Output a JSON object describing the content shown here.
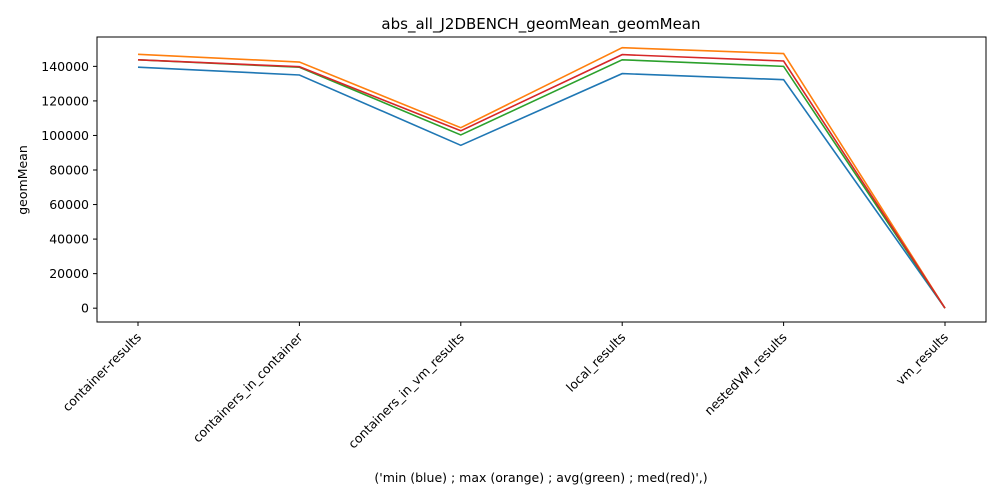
{
  "chart_data": {
    "type": "line",
    "title": "abs_all_J2DBENCH_geomMean_geomMean",
    "xlabel": "('min (blue) ; max (orange) ; avg(green) ; med(red)',)",
    "ylabel": "geomMean",
    "categories": [
      "container-results",
      "containers_in_container",
      "containers_in_vm_results",
      "local_results",
      "nestedVM_results",
      "vm_results"
    ],
    "yticks": [
      "0",
      "20000",
      "40000",
      "60000",
      "80000",
      "100000",
      "120000",
      "140000"
    ],
    "ytick_values": [
      0,
      20000,
      40000,
      60000,
      80000,
      100000,
      120000,
      140000
    ],
    "ylim": [
      -8000,
      157000
    ],
    "grid": false,
    "series": [
      {
        "color": "#1f77b4",
        "values": [
          139500,
          135000,
          94300,
          135800,
          132300,
          0
        ]
      },
      {
        "color": "#ff7f0e",
        "values": [
          147000,
          142500,
          104500,
          150800,
          147400,
          0
        ]
      },
      {
        "color": "#2ca02c",
        "values": [
          143800,
          139500,
          100300,
          143800,
          140000,
          0
        ]
      },
      {
        "color": "#d62728",
        "values": [
          143800,
          139800,
          102700,
          146800,
          143100,
          0
        ]
      }
    ]
  }
}
